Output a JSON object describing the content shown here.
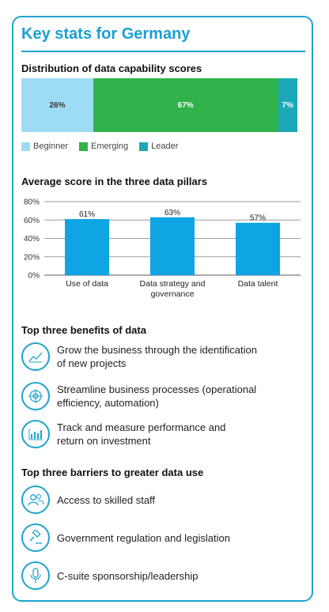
{
  "title": "Key stats for Germany",
  "distribution": {
    "heading": "Distribution of data capability scores",
    "segments": [
      {
        "label": "26%",
        "value": 26,
        "color": "#9edcf4",
        "text_color": "#333333"
      },
      {
        "label": "67%",
        "value": 67,
        "color": "#2fb34a",
        "text_color": "#ffffff"
      },
      {
        "label": "7%",
        "value": 7,
        "color": "#1ba7b8",
        "text_color": "#ffffff"
      }
    ],
    "legend": [
      {
        "label": "Beginner",
        "color": "#9edcf4"
      },
      {
        "label": "Emerging",
        "color": "#2fb34a"
      },
      {
        "label": "Leader",
        "color": "#1ba7b8"
      }
    ]
  },
  "pillars_heading": "Average score in the three data pillars",
  "chart_data": {
    "type": "bar",
    "categories": [
      "Use of data",
      "Data strategy and governance",
      "Data talent"
    ],
    "category_lines": [
      [
        "Use of data"
      ],
      [
        "Data strategy and",
        "governance"
      ],
      [
        "Data talent"
      ]
    ],
    "values": [
      61,
      63,
      57
    ],
    "value_labels": [
      "61%",
      "63%",
      "57%"
    ],
    "ylim": [
      0,
      80
    ],
    "yticks": [
      0,
      20,
      40,
      60,
      80
    ],
    "ytick_labels": [
      "0%",
      "20%",
      "40%",
      "60%",
      "80%"
    ],
    "grid": true,
    "bar_color": "#0fa4e3"
  },
  "benefits": {
    "heading": "Top three benefits of data",
    "items": [
      {
        "icon": "trend-chart-icon",
        "lines": [
          "Grow the business through the identification",
          "of new projects"
        ]
      },
      {
        "icon": "target-icon",
        "lines": [
          "Streamline business processes (operational",
          "efficiency, automation)"
        ]
      },
      {
        "icon": "bar-graph-icon",
        "lines": [
          "Track and measure performance and",
          "return on investment"
        ]
      }
    ]
  },
  "barriers": {
    "heading": "Top three barriers to greater data use",
    "items": [
      {
        "icon": "people-icon",
        "lines": [
          "Access to skilled staff"
        ]
      },
      {
        "icon": "gavel-icon",
        "lines": [
          "Government regulation and legislation"
        ]
      },
      {
        "icon": "microphone-icon",
        "lines": [
          "C-suite sponsorship/leadership"
        ]
      }
    ]
  },
  "colors": {
    "accent": "#1ea3cf"
  }
}
